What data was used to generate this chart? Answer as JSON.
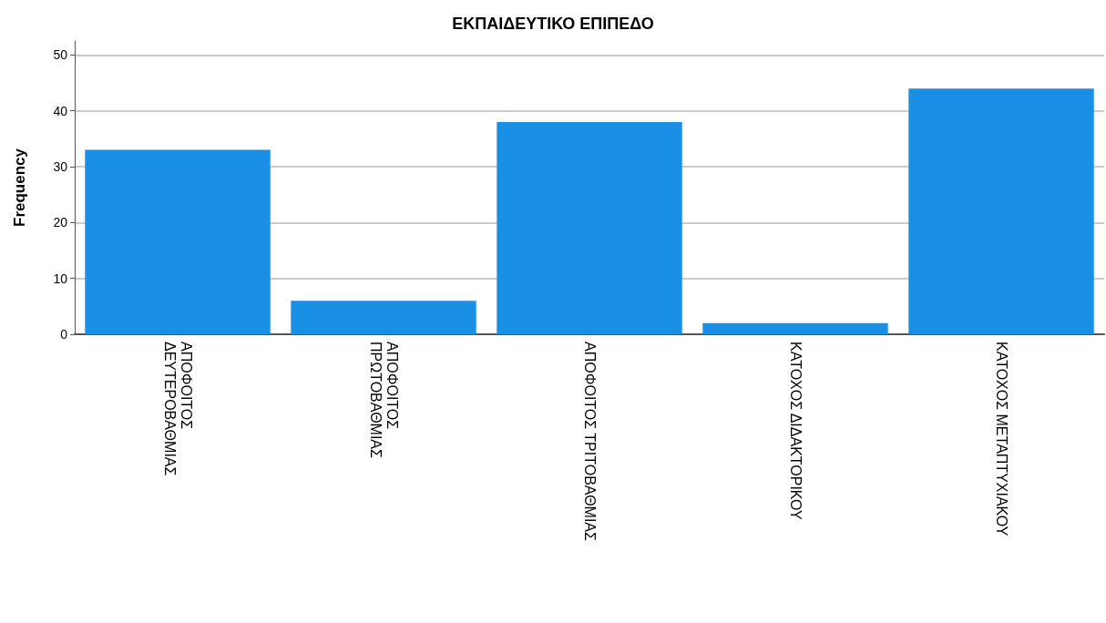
{
  "chart_data": {
    "type": "bar",
    "title": "ΕΚΠΑΙΔΕΥΤΙΚΟ ΕΠΙΠΕΔΟ",
    "ylabel": "Frequency",
    "categories": [
      "ΑΠΟΦΟΙΤΟΣ\nΔΕΥΤΕΡΟΒΑΘΜΙΑΣ",
      "ΑΠΟΦΟΙΤΟΣ\nΠΡΩΤΟΒΑΘΜΙΑΣ",
      "ΑΠΟΦΟΙΤΟΣ ΤΡΙΤΟΒΑΘΜΙΑΣ",
      "ΚΑΤΟΧΟΣ ΔΙΔΑΚΤΟΡΙΚΟΥ",
      "ΚΑΤΟΧΟΣ ΜΕΤΑΠΤΥΧΙΑΚΟΥ"
    ],
    "values": [
      33,
      6,
      38,
      2,
      44
    ],
    "color": "#1a8fe6",
    "ylim": [
      0,
      52.5
    ],
    "yticks": [
      0,
      10,
      20,
      30,
      40,
      50
    ],
    "grid": "y"
  }
}
